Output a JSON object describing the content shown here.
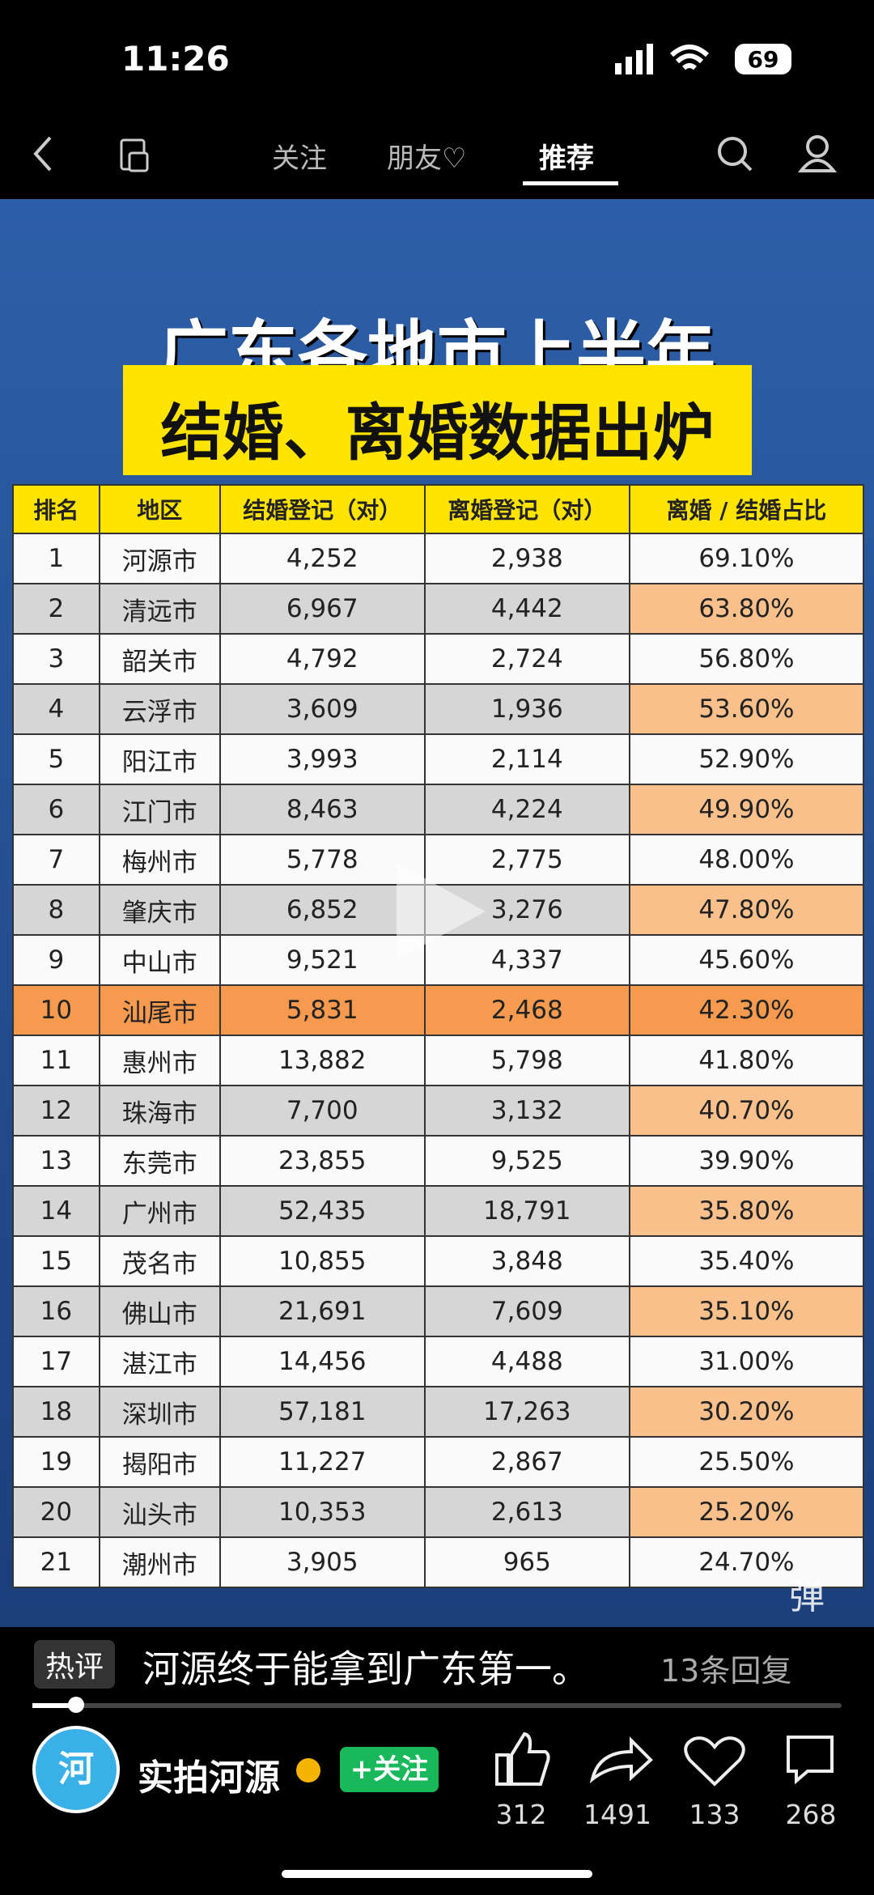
{
  "status_bar": {
    "time": "11:26",
    "battery": "69"
  },
  "nav": {
    "tabs": [
      "关注",
      "朋友♡",
      "推荐"
    ]
  },
  "poster": {
    "title_line1": "广东各地市上半年",
    "title_line2": "结婚、离婚数据出炉",
    "table": {
      "headers": [
        "排名",
        "地区",
        "结婚登记（对）",
        "离婚登记（对）",
        "离婚 / 结婚占比"
      ],
      "rows": [
        [
          "1",
          "河源市",
          "4,252",
          "2,938",
          "69.10%"
        ],
        [
          "2",
          "清远市",
          "6,967",
          "4,442",
          "63.80%"
        ],
        [
          "3",
          "韶关市",
          "4,792",
          "2,724",
          "56.80%"
        ],
        [
          "4",
          "云浮市",
          "3,609",
          "1,936",
          "53.60%"
        ],
        [
          "5",
          "阳江市",
          "3,993",
          "2,114",
          "52.90%"
        ],
        [
          "6",
          "江门市",
          "8,463",
          "4,224",
          "49.90%"
        ],
        [
          "7",
          "梅州市",
          "5,778",
          "2,775",
          "48.00%"
        ],
        [
          "8",
          "肇庆市",
          "6,852",
          "3,276",
          "47.80%"
        ],
        [
          "9",
          "中山市",
          "9,521",
          "4,337",
          "45.60%"
        ],
        [
          "10",
          "汕尾市",
          "5,831",
          "2,468",
          "42.30%"
        ],
        [
          "11",
          "惠州市",
          "13,882",
          "5,798",
          "41.80%"
        ],
        [
          "12",
          "珠海市",
          "7,700",
          "3,132",
          "40.70%"
        ],
        [
          "13",
          "东莞市",
          "23,855",
          "9,525",
          "39.90%"
        ],
        [
          "14",
          "广州市",
          "52,435",
          "18,791",
          "35.80%"
        ],
        [
          "15",
          "茂名市",
          "10,855",
          "3,848",
          "35.40%"
        ],
        [
          "16",
          "佛山市",
          "21,691",
          "7,609",
          "35.10%"
        ],
        [
          "17",
          "湛江市",
          "14,456",
          "4,488",
          "31.00%"
        ],
        [
          "18",
          "深圳市",
          "57,181",
          "17,263",
          "30.20%"
        ],
        [
          "19",
          "揭阳市",
          "11,227",
          "2,867",
          "25.50%"
        ],
        [
          "20",
          "汕头市",
          "10,353",
          "2,613",
          "25.20%"
        ],
        [
          "21",
          "潮州市",
          "3,905",
          "965",
          "24.70%"
        ]
      ]
    },
    "danmaku_icon": "弹"
  },
  "comment": {
    "tag": "热评",
    "text": "河源终于能拿到广东第一。",
    "replies": "13条回复"
  },
  "author": {
    "avatar_text": "河",
    "name": "实拍河源",
    "follow": "+关注"
  },
  "actions": [
    {
      "count": "312"
    },
    {
      "count": "1491"
    },
    {
      "count": "133"
    },
    {
      "count": "268"
    }
  ]
}
